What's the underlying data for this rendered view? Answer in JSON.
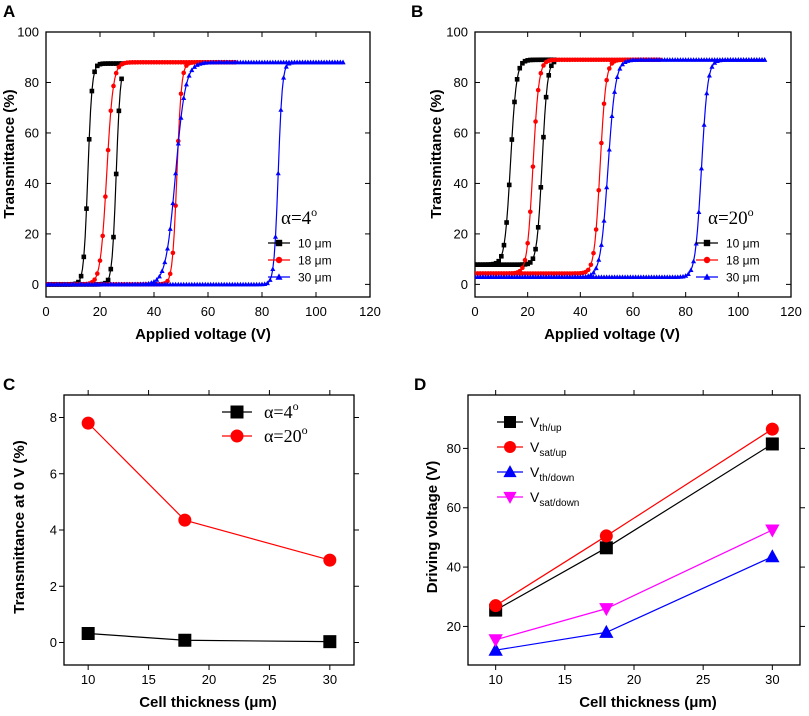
{
  "chart_data": [
    {
      "panel": "A",
      "type": "line",
      "xlabel": "Applied voltage (V)",
      "ylabel": "Transmittance (%)",
      "xlim": [
        0,
        120
      ],
      "ylim": [
        -5,
        100
      ],
      "xticks": [
        0,
        20,
        40,
        60,
        80,
        100,
        120
      ],
      "yticks": [
        0,
        20,
        40,
        60,
        80,
        100
      ],
      "annotation": {
        "text": "α=4",
        "sup": "o"
      },
      "legend_position": "lower-right",
      "series": [
        {
          "name": "10 μm",
          "color": "#000000",
          "marker": "square",
          "baseline": 0,
          "max": 87.5,
          "up": {
            "mid": 15.5,
            "k": 1.3
          },
          "down": {
            "mid": 26.0,
            "k": 1.3
          },
          "xmax": 28
        },
        {
          "name": "18 μm",
          "color": "#ff0000",
          "marker": "circle",
          "baseline": 0,
          "max": 88,
          "up": {
            "mid": 22.5,
            "k": 0.85
          },
          "down": {
            "mid": 48.5,
            "k": 1.2
          },
          "xmax": 70
        },
        {
          "name": "30 μm",
          "color": "#0000ff",
          "marker": "triangle",
          "baseline": 0,
          "max": 88,
          "up": {
            "mid": 48.0,
            "k": 0.55
          },
          "down": {
            "mid": 86.0,
            "k": 1.3
          },
          "xmax": 110
        }
      ]
    },
    {
      "panel": "B",
      "type": "line",
      "xlabel": "Applied voltage (V)",
      "ylabel": "Transmittance (%)",
      "xlim": [
        0,
        120
      ],
      "ylim": [
        -5,
        100
      ],
      "xticks": [
        0,
        20,
        40,
        60,
        80,
        100,
        120
      ],
      "yticks": [
        0,
        20,
        40,
        60,
        80,
        100
      ],
      "annotation": {
        "text": "α=20",
        "sup": "o"
      },
      "legend_position": "lower-right",
      "series": [
        {
          "name": "10 μm",
          "color": "#000000",
          "marker": "square",
          "baseline": 7.8,
          "max": 89,
          "up": {
            "mid": 13.5,
            "k": 0.9
          },
          "down": {
            "mid": 25.5,
            "k": 1.0
          },
          "xmax": 30
        },
        {
          "name": "18 μm",
          "color": "#ff0000",
          "marker": "circle",
          "baseline": 4.3,
          "max": 89,
          "up": {
            "mid": 22.0,
            "k": 0.9
          },
          "down": {
            "mid": 47.5,
            "k": 0.9
          },
          "xmax": 70
        },
        {
          "name": "30 μm",
          "color": "#0000ff",
          "marker": "triangle",
          "baseline": 2.9,
          "max": 89,
          "up": {
            "mid": 50.5,
            "k": 0.7
          },
          "down": {
            "mid": 86.0,
            "k": 0.85
          },
          "xmax": 110
        }
      ]
    },
    {
      "panel": "C",
      "type": "line",
      "xlabel": "Cell thickness (μm)",
      "ylabel": "Transmittance at 0 V (%)",
      "xlim": [
        8,
        32
      ],
      "ylim": [
        -0.8,
        8.8
      ],
      "xticks": [
        10,
        15,
        20,
        25,
        30
      ],
      "yticks": [
        0,
        2,
        4,
        6,
        8
      ],
      "x": [
        10,
        18,
        30
      ],
      "legend_position": "top-right",
      "series": [
        {
          "name": "α=4",
          "sup": "o",
          "color": "#000000",
          "marker": "square",
          "values": [
            0.32,
            0.08,
            0.03
          ]
        },
        {
          "name": "α=20",
          "sup": "o",
          "color": "#ff0000",
          "marker": "circle",
          "values": [
            7.8,
            4.35,
            2.93
          ]
        }
      ]
    },
    {
      "panel": "D",
      "type": "line",
      "xlabel": "Cell thickness (μm)",
      "ylabel": "Driving voltage (V)",
      "xlim": [
        8,
        32
      ],
      "ylim": [
        7,
        98
      ],
      "xticks": [
        10,
        15,
        20,
        25,
        30
      ],
      "yticks": [
        20,
        40,
        60,
        80
      ],
      "x": [
        10,
        18,
        30
      ],
      "legend_position": "top-left",
      "series": [
        {
          "name": "V",
          "sub": "th/up",
          "color": "#000000",
          "marker": "square",
          "values": [
            25.5,
            46.5,
            81.5
          ]
        },
        {
          "name": "V",
          "sub": "sat/up",
          "color": "#ff0000",
          "marker": "circle",
          "values": [
            27,
            50.5,
            86.5
          ]
        },
        {
          "name": "V",
          "sub": "th/down",
          "color": "#0000ff",
          "marker": "triangle",
          "values": [
            12,
            18,
            43.5
          ]
        },
        {
          "name": "V",
          "sub": "sat/down",
          "color": "#ff00ff",
          "marker": "triangle-down",
          "values": [
            15.5,
            26,
            52.5
          ]
        }
      ]
    }
  ]
}
